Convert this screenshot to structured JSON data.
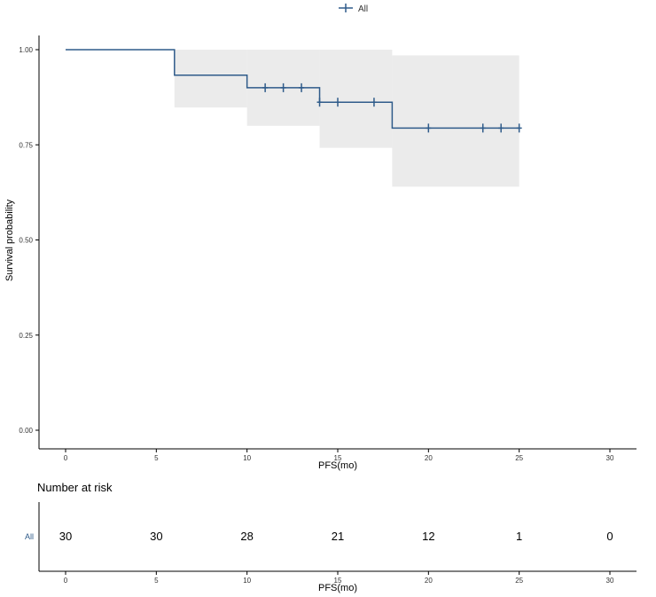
{
  "colors": {
    "line": "#2f5b8a",
    "ci_fill": "#ebebeb",
    "axis": "#000000",
    "text": "#333333"
  },
  "legend": {
    "label": "All",
    "position": "top"
  },
  "chart_data": [
    {
      "type": "line",
      "subtype": "kaplan-meier",
      "title": "",
      "xlabel": "PFS(mo)",
      "ylabel": "Survival probability",
      "xlim": [
        0,
        30
      ],
      "ylim": [
        0,
        1
      ],
      "x_ticks": [
        "0",
        "5",
        "10",
        "15",
        "20",
        "25",
        "30"
      ],
      "y_ticks": [
        "0.00",
        "0.25",
        "0.50",
        "0.75",
        "1.00"
      ],
      "x_tick_values": [
        0,
        5,
        10,
        15,
        20,
        25,
        30
      ],
      "y_tick_values": [
        0,
        0.25,
        0.5,
        0.75,
        1.0
      ],
      "grid": false,
      "series": [
        {
          "name": "All",
          "steps": [
            {
              "x": 0,
              "y": 1.0
            },
            {
              "x": 6,
              "y": 0.933
            },
            {
              "x": 10,
              "y": 0.9
            },
            {
              "x": 14,
              "y": 0.862
            },
            {
              "x": 18,
              "y": 0.794
            }
          ],
          "end_x": 25,
          "ci": [
            {
              "from": 0,
              "to": 6,
              "lower": 1.0,
              "upper": 1.0
            },
            {
              "from": 6,
              "to": 10,
              "lower": 0.848,
              "upper": 1.0
            },
            {
              "from": 10,
              "to": 14,
              "lower": 0.8,
              "upper": 1.0
            },
            {
              "from": 14,
              "to": 18,
              "lower": 0.742,
              "upper": 1.0
            },
            {
              "from": 18,
              "to": 25,
              "lower": 0.64,
              "upper": 0.985
            }
          ],
          "censor_x": [
            11,
            12,
            13,
            14,
            15,
            17,
            20,
            23,
            24,
            25
          ]
        }
      ]
    },
    {
      "type": "table",
      "title": "Number at risk",
      "xlabel": "PFS(mo)",
      "xlim": [
        0,
        30
      ],
      "x_ticks": [
        "0",
        "5",
        "10",
        "15",
        "20",
        "25",
        "30"
      ],
      "x_tick_values": [
        0,
        5,
        10,
        15,
        20,
        25,
        30
      ],
      "row_label": "All",
      "times": [
        0,
        5,
        10,
        15,
        20,
        25,
        30
      ],
      "counts": [
        "30",
        "30",
        "28",
        "21",
        "12",
        "1",
        "0"
      ]
    }
  ]
}
